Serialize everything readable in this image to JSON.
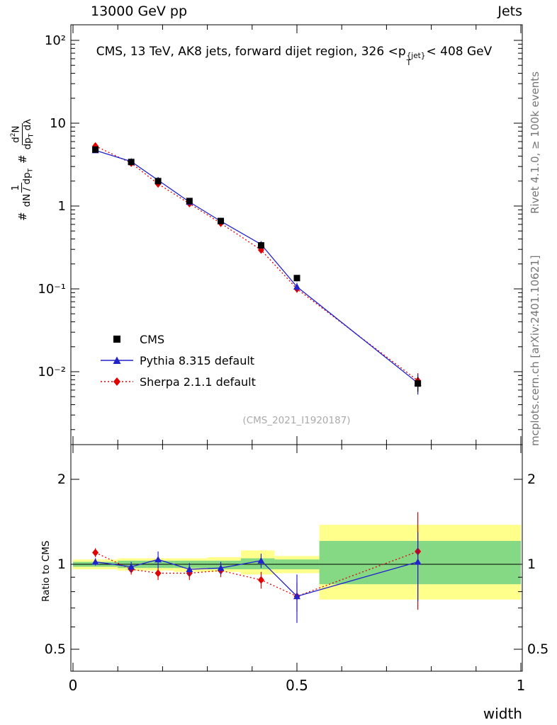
{
  "header": {
    "left": "13000 GeV pp",
    "right": "Jets"
  },
  "title": {
    "pre": "CMS, 13 TeV, AK8 jets, forward dijet region, 326 <p",
    "sup": "{jet}",
    "sub": "T",
    "post": "< 408 GeV"
  },
  "ylabel": {
    "hash1": "#",
    "f1num": "1",
    "f1den_pre": "dN / dp",
    "f1den_sub": "T",
    "hash2": "#",
    "f2num_pre": "d",
    "f2num_sup": "2",
    "f2num_post": "N",
    "f2den_pre": "dp",
    "f2den_sub": "T",
    "f2den_post": " dλ"
  },
  "ratio_ylabel": "Ratio to CMS",
  "xlabel": "width",
  "watermark": "(CMS_2021_I1920187)",
  "side": {
    "rivet": "Rivet 4.1.0, ≥ 100k events",
    "mcplots": "mcplots.cern.ch [arXiv:2401.10621]"
  },
  "legend": {
    "items": [
      {
        "label": "CMS"
      },
      {
        "label": "Pythia 8.315 default"
      },
      {
        "label": "Sherpa 2.1.1 default"
      }
    ]
  },
  "chart_data": {
    "type": "line",
    "title": "CMS, 13 TeV, AK8 jets, forward dijet region, 326 < pT{jet} < 408 GeV",
    "xlabel": "width",
    "ylabel": "# 1/(dN/dpT) d2N/(dpT dλ)",
    "ratio_label": "Ratio to CMS",
    "x": [
      0.05,
      0.13,
      0.19,
      0.26,
      0.33,
      0.42,
      0.5,
      0.77
    ],
    "xlim": [
      0,
      1.0
    ],
    "ylog_main": true,
    "ylim_main": [
      0.0013,
      155
    ],
    "ratio_log": true,
    "ylim_ratio": [
      0.42,
      2.66
    ],
    "grid": false,
    "legend_position": "middle-left",
    "colors": {
      "cms": "#000000",
      "pythia": "#2222cc",
      "sherpa": "#e00000",
      "band_outer": "#ffff8c",
      "band_inner": "#85d985"
    },
    "series": [
      {
        "name": "Sherpa 2.1.1 default",
        "marker": "diamond",
        "color": "#e00000",
        "line": "dotted",
        "values": [
          5.3,
          3.3,
          1.85,
          1.07,
          0.62,
          0.295,
          0.1,
          0.0078
        ],
        "errors": [
          0.25,
          0.15,
          0.1,
          0.06,
          0.04,
          0.02,
          0.01,
          0.0018
        ]
      },
      {
        "name": "Pythia 8.315 default",
        "marker": "triangle",
        "color": "#2222cc",
        "line": "solid",
        "values": [
          4.7,
          3.45,
          2.05,
          1.12,
          0.655,
          0.345,
          0.106,
          0.0073
        ],
        "errors": [
          0.15,
          0.1,
          0.08,
          0.05,
          0.03,
          0.02,
          0.012,
          0.002
        ]
      },
      {
        "name": "CMS",
        "marker": "square",
        "color": "#000000",
        "line": null,
        "values": [
          4.8,
          3.4,
          2.0,
          1.15,
          0.66,
          0.335,
          0.135,
          0.0072
        ],
        "errors": [
          0.2,
          0.12,
          0.09,
          0.05,
          0.035,
          0.02,
          0.012,
          0.0015
        ]
      }
    ],
    "ratio": {
      "series": [
        {
          "name": "Sherpa 2.1.1 default",
          "marker": "diamond",
          "color": "#e00000",
          "line": "dotted",
          "values": [
            1.1,
            0.96,
            0.93,
            0.93,
            0.95,
            0.88,
            0.77,
            1.11
          ],
          "errors": [
            0.04,
            0.04,
            0.05,
            0.05,
            0.05,
            0.06,
            0.09,
            0.42
          ]
        },
        {
          "name": "Pythia 8.315 default",
          "marker": "triangle",
          "color": "#2222cc",
          "line": "solid",
          "values": [
            1.02,
            0.98,
            1.04,
            0.96,
            0.97,
            1.03,
            0.77,
            1.02
          ],
          "errors": [
            0.03,
            0.04,
            0.07,
            0.05,
            0.05,
            0.06,
            0.15,
            0.28
          ]
        }
      ],
      "bands": [
        {
          "x0": 0.0,
          "x1": 0.1,
          "ylo": 0.96,
          "yhi": 1.04,
          "glo": 0.98,
          "ghi": 1.02
        },
        {
          "x0": 0.1,
          "x1": 0.165,
          "ylo": 0.95,
          "yhi": 1.05,
          "glo": 0.97,
          "ghi": 1.03
        },
        {
          "x0": 0.165,
          "x1": 0.225,
          "ylo": 0.95,
          "yhi": 1.05,
          "glo": 0.97,
          "ghi": 1.03
        },
        {
          "x0": 0.225,
          "x1": 0.3,
          "ylo": 0.94,
          "yhi": 1.05,
          "glo": 0.97,
          "ghi": 1.03
        },
        {
          "x0": 0.3,
          "x1": 0.375,
          "ylo": 0.94,
          "yhi": 1.06,
          "glo": 0.96,
          "ghi": 1.03
        },
        {
          "x0": 0.375,
          "x1": 0.45,
          "ylo": 0.92,
          "yhi": 1.12,
          "glo": 0.96,
          "ghi": 1.05
        },
        {
          "x0": 0.45,
          "x1": 0.55,
          "ylo": 0.93,
          "yhi": 1.07,
          "glo": 0.96,
          "ghi": 1.04
        },
        {
          "x0": 0.55,
          "x1": 1.0,
          "ylo": 0.75,
          "yhi": 1.38,
          "glo": 0.85,
          "ghi": 1.21
        }
      ]
    },
    "axes": {
      "x": {
        "ticks": [
          {
            "v": 0,
            "label": "0"
          },
          {
            "v": 0.5,
            "label": "0.5"
          },
          {
            "v": 1,
            "label": "1"
          }
        ]
      },
      "y_main": {
        "ticks": [
          {
            "v": 100,
            "label": "10²"
          },
          {
            "v": 10,
            "label": "10"
          },
          {
            "v": 1,
            "label": "1"
          },
          {
            "v": 0.1,
            "label": "10⁻¹"
          },
          {
            "v": 0.01,
            "label": "10⁻²"
          }
        ]
      },
      "y_ratio": {
        "ticks": [
          {
            "v": 2,
            "label": "2"
          },
          {
            "v": 1,
            "label": "1"
          },
          {
            "v": 0.5,
            "label": "0.5"
          }
        ],
        "minors": [
          0.4,
          0.6,
          0.7,
          0.8,
          0.9
        ]
      }
    }
  }
}
